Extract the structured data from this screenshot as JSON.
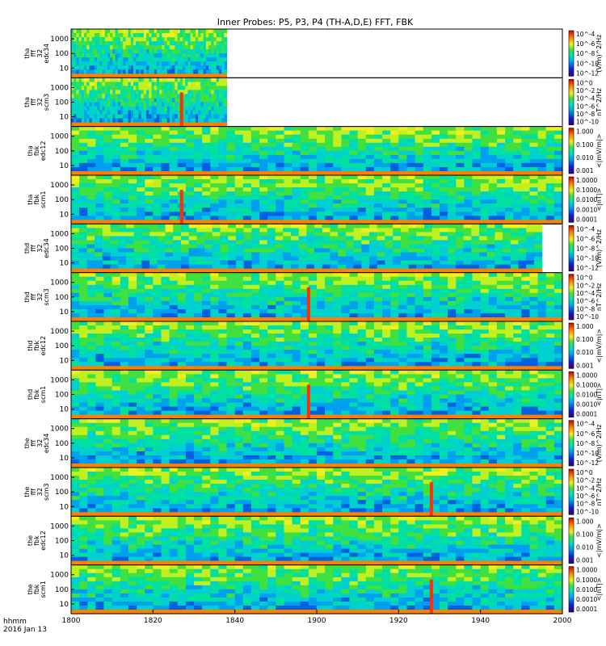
{
  "title": "Inner Probes: P5, P3, P4 (TH-A,D,E) FFT, FBK",
  "footer": {
    "time_unit": "hhmm",
    "date": "2016 Jan 13"
  },
  "chart_data": {
    "type": "heatmap",
    "title": "Inner Probes: P5, P3, P4 (TH-A,D,E) FFT, FBK",
    "x": {
      "label": "hhmm",
      "ticks": [
        "1800",
        "1820",
        "1840",
        "1900",
        "1920",
        "1940",
        "2000"
      ],
      "range": [
        "1800",
        "2000"
      ]
    },
    "panels": [
      {
        "probe": "tha",
        "ylabel": [
          "tha",
          "fff",
          "32",
          "edc34"
        ],
        "yticks": [
          "1000",
          "100",
          "10"
        ],
        "colorbar": {
          "unit": "(V/m)^2/Hz",
          "ticks": [
            "10^-4",
            "10^-6",
            "10^-8",
            "10^-10",
            "10^-12"
          ]
        },
        "data_end": "1838"
      },
      {
        "probe": "tha",
        "ylabel": [
          "tha",
          "fff",
          "32",
          "scm3"
        ],
        "yticks": [
          "1000",
          "100",
          "10"
        ],
        "colorbar": {
          "unit": "nT^2/Hz",
          "ticks": [
            "10^0",
            "10^-2",
            "10^-4",
            "10^-6",
            "10^-8",
            "10^-10"
          ]
        },
        "data_end": "1838",
        "spike": "1827"
      },
      {
        "probe": "tha",
        "ylabel": [
          "tha",
          "fbk",
          "edc12"
        ],
        "yticks": [
          "1000",
          "100",
          "10"
        ],
        "colorbar": {
          "unit": "<|mV/m|>",
          "ticks": [
            "1.000",
            "0.100",
            "0.010",
            "0.001"
          ]
        }
      },
      {
        "probe": "tha",
        "ylabel": [
          "tha",
          "fbk",
          "scm1"
        ],
        "yticks": [
          "1000",
          "100",
          "10"
        ],
        "colorbar": {
          "unit": "<|nT|>",
          "ticks": [
            "1.0000",
            "0.1000",
            "0.0100",
            "0.0010",
            "0.0001"
          ]
        },
        "spike": "1827"
      },
      {
        "probe": "thd",
        "ylabel": [
          "thd",
          "fff",
          "32",
          "edc34"
        ],
        "yticks": [
          "1000",
          "100",
          "10"
        ],
        "colorbar": {
          "unit": "(V/m)^2/Hz",
          "ticks": [
            "10^-4",
            "10^-6",
            "10^-8",
            "10^-10",
            "10^-12"
          ]
        },
        "data_end": "1955"
      },
      {
        "probe": "thd",
        "ylabel": [
          "thd",
          "fff",
          "32",
          "scm3"
        ],
        "yticks": [
          "1000",
          "100",
          "10"
        ],
        "colorbar": {
          "unit": "nT^2/Hz",
          "ticks": [
            "10^0",
            "10^-2",
            "10^-4",
            "10^-6",
            "10^-8",
            "10^-10"
          ]
        },
        "spike": "1858"
      },
      {
        "probe": "thd",
        "ylabel": [
          "thd",
          "fbk",
          "edc12"
        ],
        "yticks": [
          "1000",
          "100",
          "10"
        ],
        "colorbar": {
          "unit": "<|mV/m|>",
          "ticks": [
            "1.000",
            "0.100",
            "0.010",
            "0.001"
          ]
        }
      },
      {
        "probe": "thd",
        "ylabel": [
          "thd",
          "fbk",
          "scm1"
        ],
        "yticks": [
          "1000",
          "100",
          "10"
        ],
        "colorbar": {
          "unit": "<|nT|>",
          "ticks": [
            "1.0000",
            "0.1000",
            "0.0100",
            "0.0010",
            "0.0001"
          ]
        },
        "spike": "1858"
      },
      {
        "probe": "the",
        "ylabel": [
          "the",
          "fff",
          "32",
          "edc34"
        ],
        "yticks": [
          "1000",
          "100",
          "10"
        ],
        "colorbar": {
          "unit": "(V/m)^2/Hz",
          "ticks": [
            "10^-4",
            "10^-6",
            "10^-8",
            "10^-10",
            "10^-12"
          ]
        }
      },
      {
        "probe": "the",
        "ylabel": [
          "the",
          "fff",
          "32",
          "scm3"
        ],
        "yticks": [
          "1000",
          "100",
          "10"
        ],
        "colorbar": {
          "unit": "nT^2/Hz",
          "ticks": [
            "10^0",
            "10^-2",
            "10^-4",
            "10^-6",
            "10^-8",
            "10^-10"
          ]
        },
        "spike": "1928"
      },
      {
        "probe": "the",
        "ylabel": [
          "the",
          "fbk",
          "edc12"
        ],
        "yticks": [
          "1000",
          "100",
          "10"
        ],
        "colorbar": {
          "unit": "<|mV/m|>",
          "ticks": [
            "1.000",
            "0.100",
            "0.010",
            "0.001"
          ]
        }
      },
      {
        "probe": "the",
        "ylabel": [
          "the",
          "fbk",
          "scm1"
        ],
        "yticks": [
          "1000",
          "100",
          "10"
        ],
        "colorbar": {
          "unit": "<|nT|>",
          "ticks": [
            "1.0000",
            "0.1000",
            "0.0100",
            "0.0010",
            "0.0001"
          ]
        },
        "spike": "1928"
      }
    ]
  }
}
